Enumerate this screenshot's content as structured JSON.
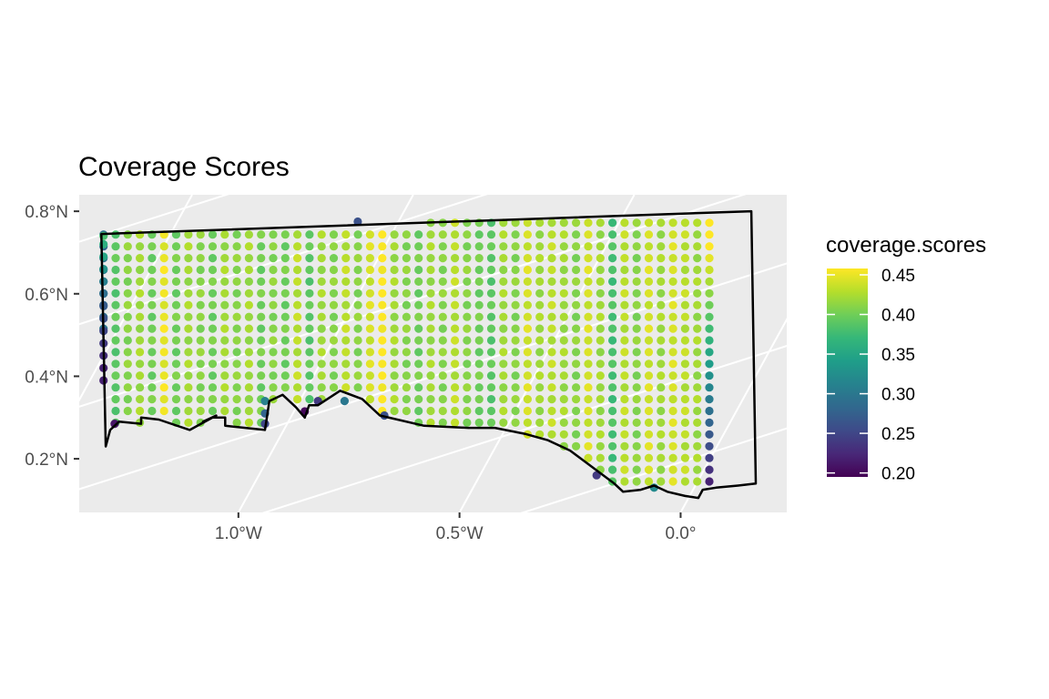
{
  "chart_data": {
    "type": "scatter",
    "title": "Coverage Scores",
    "xlabel": "",
    "ylabel": "",
    "x_ticks": [
      {
        "value": -1.0,
        "label": "1.0°W"
      },
      {
        "value": -0.5,
        "label": "0.5°W"
      },
      {
        "value": 0.0,
        "label": "0.0°"
      }
    ],
    "y_ticks": [
      {
        "value": 0.2,
        "label": "0.2°N"
      },
      {
        "value": 0.4,
        "label": "0.4°N"
      },
      {
        "value": 0.6,
        "label": "0.6°N"
      },
      {
        "value": 0.8,
        "label": "0.8°N"
      }
    ],
    "xlim": [
      -1.36,
      0.24
    ],
    "ylim": [
      0.07,
      0.84
    ],
    "grid": true,
    "panel_background": "#ebebeb",
    "grid_color": "#ffffff",
    "legend": {
      "title": "coverage.scores",
      "position": "right",
      "type": "colorbar",
      "palette": "viridis",
      "breaks": [
        0.2,
        0.25,
        0.3,
        0.35,
        0.4,
        0.45
      ],
      "break_labels": [
        "0.20",
        "0.25",
        "0.30",
        "0.35",
        "0.40",
        "0.45"
      ],
      "limits": [
        0.195,
        0.458
      ]
    },
    "viridis_stops": [
      "#440154",
      "#482878",
      "#3e4a89",
      "#31688e",
      "#26828e",
      "#1f9e89",
      "#35b779",
      "#6ece58",
      "#b5de2b",
      "#fde725"
    ],
    "boundary": {
      "color": "#000000",
      "lon": [
        -1.31,
        0.16,
        0.17,
        0.13,
        0.08,
        0.05,
        0.04,
        0.01,
        -0.03,
        -0.06,
        -0.09,
        -0.13,
        -0.15,
        -0.2,
        -0.25,
        -0.3,
        -0.35,
        -0.42,
        -0.48,
        -0.58,
        -0.68,
        -0.72,
        -0.77,
        -0.82,
        -0.84,
        -0.85,
        -0.87,
        -0.9,
        -0.93,
        -0.94,
        -1.03,
        -1.03,
        -1.06,
        -1.08,
        -1.05,
        -1.11,
        -1.18,
        -1.22,
        -1.22,
        -1.27,
        -1.29,
        -1.3,
        -1.31
      ],
      "lat": [
        0.745,
        0.8,
        0.14,
        0.135,
        0.13,
        0.125,
        0.105,
        0.11,
        0.12,
        0.135,
        0.125,
        0.12,
        0.14,
        0.18,
        0.22,
        0.245,
        0.26,
        0.275,
        0.275,
        0.28,
        0.305,
        0.345,
        0.365,
        0.33,
        0.33,
        0.3,
        0.325,
        0.355,
        0.34,
        0.27,
        0.28,
        0.3,
        0.3,
        0.29,
        0.305,
        0.27,
        0.295,
        0.3,
        0.285,
        0.29,
        0.27,
        0.23,
        0.745
      ]
    },
    "points": {
      "description_note": "",
      "lon_start": -1.305,
      "lon_step": 0.0274,
      "lat_start": 0.145,
      "lat_step": 0.0285,
      "n_cols": 51,
      "n_rows": 23,
      "column_base_values": [
        0.29,
        0.39,
        0.41,
        0.42,
        0.4,
        0.45,
        0.4,
        0.42,
        0.41,
        0.4,
        0.42,
        0.41,
        0.42,
        0.4,
        0.41,
        0.4,
        0.43,
        0.39,
        0.42,
        0.41,
        0.43,
        0.41,
        0.44,
        0.46,
        0.42,
        0.41,
        0.4,
        0.42,
        0.41,
        0.43,
        0.41,
        0.4,
        0.39,
        0.42,
        0.41,
        0.44,
        0.42,
        0.43,
        0.42,
        0.41,
        0.44,
        0.42,
        0.38,
        0.43,
        0.41,
        0.44,
        0.42,
        0.44,
        0.43,
        0.42,
        0.27
      ],
      "edge_values": [
        {
          "lon": -1.305,
          "lat": 0.39,
          "v": 0.22
        },
        {
          "lon": -1.305,
          "lat": 0.42,
          "v": 0.22
        },
        {
          "lon": -1.305,
          "lat": 0.45,
          "v": 0.23
        },
        {
          "lon": -1.305,
          "lat": 0.48,
          "v": 0.24
        },
        {
          "lon": -1.305,
          "lat": 0.51,
          "v": 0.25
        },
        {
          "lon": -1.305,
          "lat": 0.54,
          "v": 0.26
        },
        {
          "lon": -1.305,
          "lat": 0.57,
          "v": 0.27
        },
        {
          "lon": -1.305,
          "lat": 0.6,
          "v": 0.29
        },
        {
          "lon": -1.305,
          "lat": 0.63,
          "v": 0.31
        },
        {
          "lon": -1.305,
          "lat": 0.66,
          "v": 0.33
        },
        {
          "lon": -1.305,
          "lat": 0.69,
          "v": 0.35
        },
        {
          "lon": -1.305,
          "lat": 0.72,
          "v": 0.36
        },
        {
          "lon": -1.305,
          "lat": 0.74,
          "v": 0.38
        },
        {
          "lon": -1.28,
          "lat": 0.285,
          "v": 0.21
        },
        {
          "lon": -0.94,
          "lat": 0.285,
          "v": 0.25
        },
        {
          "lon": -0.94,
          "lat": 0.31,
          "v": 0.28
        },
        {
          "lon": -0.94,
          "lat": 0.34,
          "v": 0.31
        },
        {
          "lon": -0.85,
          "lat": 0.315,
          "v": 0.2
        },
        {
          "lon": -0.82,
          "lat": 0.34,
          "v": 0.24
        },
        {
          "lon": -0.76,
          "lat": 0.34,
          "v": 0.3
        },
        {
          "lon": -0.67,
          "lat": 0.305,
          "v": 0.26
        },
        {
          "lon": -0.73,
          "lat": 0.775,
          "v": 0.26
        },
        {
          "lon": -0.19,
          "lat": 0.16,
          "v": 0.24
        },
        {
          "lon": -0.06,
          "lat": 0.13,
          "v": 0.32
        }
      ]
    }
  }
}
